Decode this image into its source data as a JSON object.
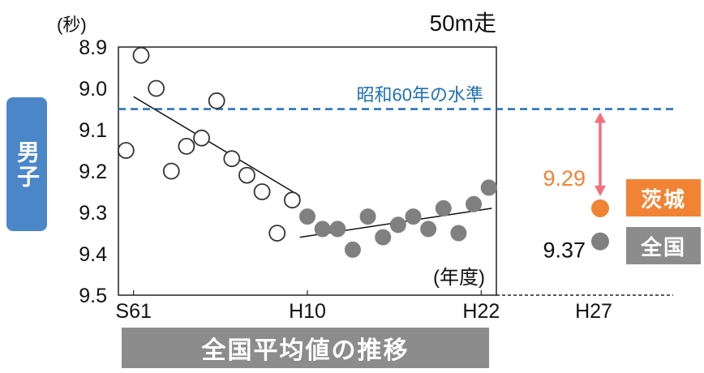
{
  "chart_data": {
    "type": "scatter",
    "title": "50m走",
    "unit_label": "(秒)",
    "x_axis_label": "(年度)",
    "x_ticks": [
      "S61",
      "H10",
      "H22",
      "H27"
    ],
    "y_ticks": [
      "8.9",
      "9.0",
      "9.1",
      "9.2",
      "9.3",
      "9.4",
      "9.5"
    ],
    "ylim": [
      8.9,
      9.5
    ],
    "y_inverted": true,
    "reference_line": {
      "label": "昭和60年の水準",
      "value": 9.05,
      "color": "#1f6fb8"
    },
    "series": [
      {
        "marker": "open-circle",
        "x": [
          1986,
          1987,
          1988,
          1989,
          1990,
          1991,
          1992,
          1993,
          1994,
          1995,
          1996,
          1997
        ],
        "y": [
          9.15,
          8.92,
          9.0,
          9.2,
          9.14,
          9.12,
          9.03,
          9.17,
          9.21,
          9.25,
          9.35,
          9.27
        ]
      },
      {
        "marker": "filled-circle",
        "color": "#808080",
        "x": [
          1998,
          1999,
          2000,
          2001,
          2002,
          2003,
          2004,
          2005,
          2006,
          2007,
          2008,
          2009,
          2010
        ],
        "y": [
          9.31,
          9.34,
          9.34,
          9.39,
          9.31,
          9.36,
          9.33,
          9.31,
          9.34,
          9.29,
          9.35,
          9.28,
          9.24
        ]
      }
    ],
    "trend_lines": [
      {
        "x": [
          1986.5,
          1997.5
        ],
        "y": [
          9.02,
          9.26
        ]
      },
      {
        "x": [
          1997.5,
          2010.2
        ],
        "y": [
          9.36,
          9.29
        ]
      }
    ],
    "x_domain": [
      1985.5,
      2010.5
    ]
  },
  "gender_label": "男子",
  "footer_label": "全国平均値の推移",
  "h27": {
    "ibaraki": {
      "value": 9.29,
      "label": "9.29",
      "badge": "茨城",
      "color": "#f08434"
    },
    "national": {
      "value": 9.37,
      "label": "9.37",
      "badge": "全国",
      "color": "#808080"
    },
    "gap_arrow_color": "#f0707a"
  }
}
